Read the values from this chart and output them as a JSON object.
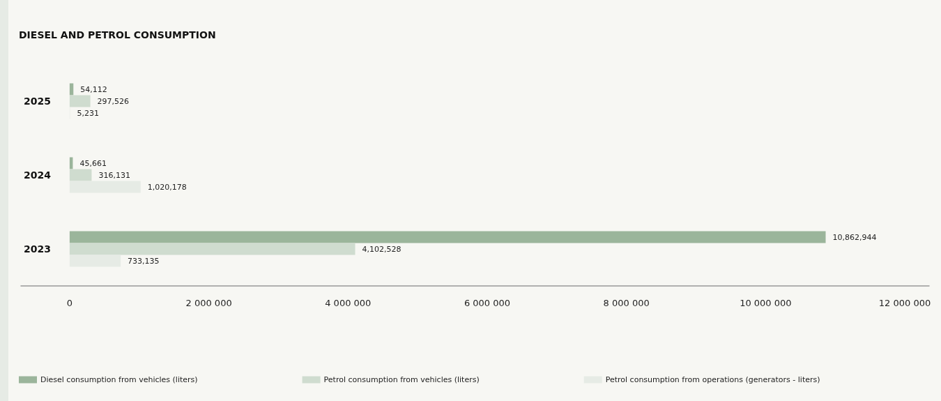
{
  "chart_data": {
    "type": "bar",
    "orientation": "horizontal",
    "title": "DIESEL AND PETROL CONSUMPTION",
    "categories": [
      "2025",
      "2024",
      "2023"
    ],
    "series": [
      {
        "name": "Diesel consumption from vehicles (liters)",
        "color": "#9bb59b",
        "values": [
          54112,
          45661,
          10862944
        ],
        "value_labels": [
          "54,112",
          "45,661",
          "10,862,944"
        ]
      },
      {
        "name": "Petrol consumption from vehicles (liters)",
        "color": "#cfdccf",
        "values": [
          297526,
          316131,
          4102528
        ],
        "value_labels": [
          "297,526",
          "316,131",
          "4,102,528"
        ]
      },
      {
        "name": "Petrol consumption from operations (generators - liters)",
        "color": "#e6ebe5",
        "values": [
          5231,
          1020178,
          733135
        ],
        "value_labels": [
          "5,231",
          "1,020,178",
          "733,135"
        ]
      }
    ],
    "xlim": [
      -700000,
      12350000
    ],
    "xticks": [
      0,
      {
        "value": 2000000,
        "label": "2 000 000"
      },
      {
        "value": 4000000,
        "label": "4 000 000"
      },
      {
        "value": 6000000,
        "label": "6 000 000"
      },
      {
        "value": 8000000,
        "label": "8 000 000"
      },
      {
        "value": 10000000,
        "label": "10 000 000"
      },
      {
        "value": 12000000,
        "label": "12 000 000"
      }
    ],
    "grid": false,
    "legend": "bottom left"
  }
}
